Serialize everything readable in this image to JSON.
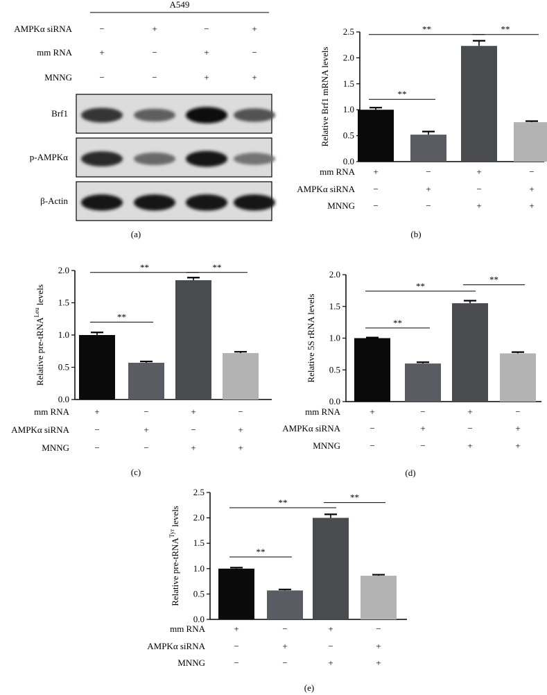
{
  "panel_a": {
    "cell_line": "A549",
    "rows": [
      {
        "label": "AMPKα siRNA",
        "signs": [
          "−",
          "+",
          "−",
          "+"
        ]
      },
      {
        "label": "mm RNA",
        "signs": [
          "+",
          "−",
          "+",
          "−"
        ]
      },
      {
        "label": "MNNG",
        "signs": [
          "−",
          "−",
          "+",
          "+"
        ]
      }
    ],
    "blots": [
      {
        "label": "Brf1",
        "intensity": [
          0.78,
          0.55,
          0.98,
          0.62
        ]
      },
      {
        "label": "p-AMPKα",
        "intensity": [
          0.82,
          0.5,
          0.92,
          0.45
        ]
      },
      {
        "label": "β-Actin",
        "intensity": [
          0.95,
          0.93,
          0.96,
          0.94
        ]
      }
    ],
    "caption": "(a)"
  },
  "colors": [
    "#0a0a0a",
    "#5b5c63",
    "#4a4b4e",
    "#b3b3b3"
  ],
  "chart_data": [
    {
      "id": "b",
      "type": "bar",
      "ylabel": "Relative Brf1 mRNA levels",
      "ylim": [
        0,
        2.5
      ],
      "yticks": [
        "0.0",
        "0.5",
        "1.0",
        "1.5",
        "2.0",
        "2.5"
      ],
      "values": [
        1.0,
        0.52,
        2.23,
        0.76
      ],
      "errors": [
        0.04,
        0.06,
        0.1,
        0.02
      ],
      "conditions": [
        {
          "label": "mm RNA",
          "signs": [
            "+",
            "−",
            "+",
            "−"
          ]
        },
        {
          "label": "AMPKα siRNA",
          "signs": [
            "−",
            "+",
            "−",
            "+"
          ]
        },
        {
          "label": "MNNG",
          "signs": [
            "−",
            "−",
            "+",
            "+"
          ]
        }
      ],
      "significance": [
        {
          "bars": [
            0,
            1
          ],
          "y": 1.2,
          "label": "**"
        },
        {
          "bars": [
            0,
            2
          ],
          "y": 2.45,
          "label": "**"
        },
        {
          "bars": [
            2,
            3
          ],
          "y": 2.45,
          "label": "**"
        }
      ],
      "caption": "(b)"
    },
    {
      "id": "c",
      "type": "bar",
      "ylabel": "Relative pre-tRNA",
      "ylabel_sup": "Leu",
      "ylabel_tail": " levels",
      "ylim": [
        0,
        2.0
      ],
      "yticks": [
        "0.0",
        "0.5",
        "1.0",
        "1.5",
        "2.0"
      ],
      "values": [
        1.0,
        0.57,
        1.85,
        0.72
      ],
      "errors": [
        0.04,
        0.02,
        0.04,
        0.02
      ],
      "conditions": [
        {
          "label": "mm RNA",
          "signs": [
            "+",
            "−",
            "+",
            "−"
          ]
        },
        {
          "label": "AMPKα siRNA",
          "signs": [
            "−",
            "+",
            "−",
            "+"
          ]
        },
        {
          "label": "MNNG",
          "signs": [
            "−",
            "−",
            "+",
            "+"
          ]
        }
      ],
      "significance": [
        {
          "bars": [
            0,
            1
          ],
          "y": 1.2,
          "label": "**"
        },
        {
          "bars": [
            0,
            2
          ],
          "y": 1.97,
          "label": "**"
        },
        {
          "bars": [
            2,
            3
          ],
          "y": 1.97,
          "label": "**"
        }
      ],
      "caption": "(c)"
    },
    {
      "id": "d",
      "type": "bar",
      "ylabel": "Relative 5S rRNA levels",
      "ylim": [
        0,
        2.0
      ],
      "yticks": [
        "0.0",
        "0.5",
        "1.0",
        "1.5",
        "2.0"
      ],
      "values": [
        1.0,
        0.6,
        1.55,
        0.76
      ],
      "errors": [
        0.01,
        0.02,
        0.04,
        0.02
      ],
      "conditions": [
        {
          "label": "mm RNA",
          "signs": [
            "+",
            "−",
            "+",
            "−"
          ]
        },
        {
          "label": "AMPKα siRNA",
          "signs": [
            "−",
            "+",
            "−",
            "+"
          ]
        },
        {
          "label": "MNNG",
          "signs": [
            "−",
            "−",
            "+",
            "+"
          ]
        }
      ],
      "significance": [
        {
          "bars": [
            0,
            1
          ],
          "y": 1.16,
          "label": "**"
        },
        {
          "bars": [
            0,
            2
          ],
          "y": 1.74,
          "label": "**"
        },
        {
          "bars": [
            2,
            3
          ],
          "y": 1.84,
          "label": "**"
        }
      ],
      "caption": "(d)"
    },
    {
      "id": "e",
      "type": "bar",
      "ylabel": "Relative pre-tRNA",
      "ylabel_sup": "Tyr",
      "ylabel_tail": " levels",
      "ylim": [
        0,
        2.5
      ],
      "yticks": [
        "0.0",
        "0.5",
        "1.0",
        "1.5",
        "2.0",
        "2.5"
      ],
      "values": [
        1.0,
        0.57,
        2.0,
        0.86
      ],
      "errors": [
        0.02,
        0.02,
        0.07,
        0.02
      ],
      "conditions": [
        {
          "label": "mm RNA",
          "signs": [
            "+",
            "−",
            "+",
            "−"
          ]
        },
        {
          "label": "AMPKα siRNA",
          "signs": [
            "−",
            "+",
            "−",
            "+"
          ]
        },
        {
          "label": "MNNG",
          "signs": [
            "−",
            "−",
            "+",
            "+"
          ]
        }
      ],
      "significance": [
        {
          "bars": [
            0,
            1
          ],
          "y": 1.23,
          "label": "**"
        },
        {
          "bars": [
            0,
            2
          ],
          "y": 2.2,
          "label": "**"
        },
        {
          "bars": [
            2,
            3
          ],
          "y": 2.3,
          "label": "**"
        }
      ],
      "caption": "(e)"
    }
  ]
}
